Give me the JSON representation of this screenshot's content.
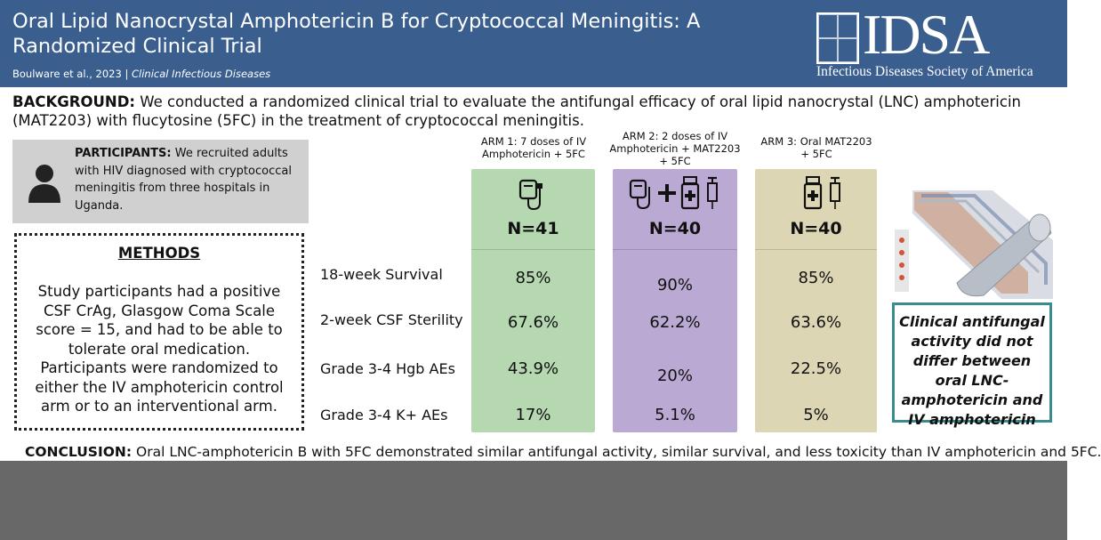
{
  "header": {
    "title": "Oral Lipid Nanocrystal Amphotericin B for Cryptococcal Meningitis: A Randomized Clinical Trial",
    "authors": "Boulware et al., 2023",
    "separator": "|",
    "journal": "Clinical Infectious Diseases",
    "logo_word": "IDSA",
    "logo_subtitle": "Infectious Diseases Society of America"
  },
  "background": {
    "label": "BACKGROUND:",
    "text": "We conducted a randomized clinical trial to evaluate the antifungal efficacy of oral lipid nanocrystal (LNC) amphotericin (MAT2203) with flucytosine (5FC) in the treatment of cryptococcal meningitis."
  },
  "participants": {
    "label": "PARTICIPANTS:",
    "text": "We recruited adults with HIV diagnosed with cryptococcal meningitis from three hospitals in Uganda."
  },
  "methods": {
    "title": "METHODS",
    "text": "Study participants had a positive CSF CrAg, Glasgow Coma Scale score = 15, and had to be able to tolerate oral medication. Participants were randomized to either the IV amphotericin control arm or to an interventional arm."
  },
  "arms": [
    {
      "header_line1": "ARM 1: 7 doses of IV",
      "header_line2": "Amphotericin + 5FC",
      "header_line3": "",
      "n": "N=41",
      "survival": "85%",
      "csf": "67.6%",
      "hgb": "43.9%",
      "kplus": "17%",
      "color": "#b5d8b0"
    },
    {
      "header_line1": "ARM 2: 2 doses of IV",
      "header_line2": "Amphotericin + MAT2203",
      "header_line3": "+ 5FC",
      "n": "N=40",
      "survival": "90%",
      "csf": "62.2%",
      "hgb": "20%",
      "kplus": "5.1%",
      "color": "#b9a9d3"
    },
    {
      "header_line1": "ARM 3:  Oral MAT2203",
      "header_line2": "+ 5FC",
      "header_line3": "",
      "n": "N=40",
      "survival": "85%",
      "csf": "63.6%",
      "hgb": "22.5%",
      "kplus": "5%",
      "color": "#ddd6b4"
    }
  ],
  "rows": {
    "survival": "18-week Survival",
    "csf": "2-week CSF Sterility",
    "hgb": "Grade 3-4 Hgb AEs",
    "kplus": "Grade 3-4 K+ AEs"
  },
  "callout": {
    "text": "Clinical antifungal activity did not differ between oral LNC-amphotericin and IV amphotericin"
  },
  "conclusion": {
    "label": "CONCLUSION:",
    "text": "Oral LNC-amphotericin B with 5FC demonstrated similar antifungal activity, similar survival, and less toxicity than IV amphotericin and 5FC."
  },
  "icons": {
    "person": "person-icon",
    "iv_bag": "iv-bag-icon",
    "pill_bottle": "pill-bottle-icon",
    "syringe": "syringe-icon",
    "plus": "plus-icon",
    "nanocrystal": "nanocrystal-illustration"
  },
  "colors": {
    "header_bg": "#3a5f8f",
    "arm1": "#b5d8b0",
    "arm2": "#b9a9d3",
    "arm3": "#ddd6b4",
    "callout_border": "#3a8d8f",
    "participants_bg": "#d0d0d0"
  }
}
